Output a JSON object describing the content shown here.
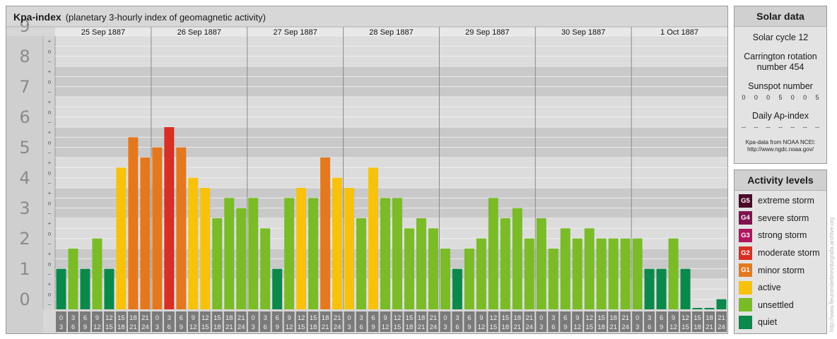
{
  "title": "Kpa-index",
  "subtitle": "(planetary 3-hourly index of geomagnetic activity)",
  "chart_data": {
    "type": "bar",
    "title": "Kpa-index",
    "subtitle": "(planetary 3-hourly index of geomagnetic activity)",
    "ylim": [
      0,
      9
    ],
    "y_ticks": [
      "0",
      "1",
      "2",
      "3",
      "4",
      "5",
      "6",
      "7",
      "8",
      "9"
    ],
    "sub_ticks": [
      "−",
      "o",
      "+"
    ],
    "days": [
      "25 Sep 1887",
      "26 Sep 1887",
      "27 Sep 1887",
      "28 Sep 1887",
      "29 Sep 1887",
      "30 Sep 1887",
      "1 Oct 1887"
    ],
    "interval_start": [
      "0",
      "3",
      "6",
      "9",
      "12",
      "15",
      "18",
      "21"
    ],
    "interval_end": [
      "3",
      "6",
      "9",
      "12",
      "15",
      "18",
      "21",
      "24"
    ],
    "values": [
      1.333,
      2.0,
      1.333,
      2.333,
      1.333,
      4.667,
      5.667,
      5.0,
      5.333,
      6.0,
      5.333,
      4.333,
      4.0,
      3.0,
      3.667,
      3.333,
      3.667,
      2.667,
      1.333,
      3.667,
      4.0,
      3.667,
      5.0,
      4.333,
      4.0,
      3.0,
      4.667,
      3.667,
      3.667,
      2.667,
      3.0,
      2.667,
      2.0,
      1.333,
      2.0,
      2.333,
      3.667,
      3.0,
      3.333,
      2.333,
      3.0,
      2.0,
      2.667,
      2.333,
      2.667,
      2.333,
      2.333,
      2.333,
      2.333,
      1.333,
      1.333,
      2.333,
      1.333,
      0.0,
      0.0,
      0.333
    ]
  },
  "solar": {
    "heading": "Solar data",
    "cycle": "Solar cycle 12",
    "carrington_1": "Carrington rotation",
    "carrington_2": "number 454",
    "sunspot_label": "Sunspot number",
    "sunspot_digits": [
      "0",
      "0",
      "0",
      "5",
      "0",
      "0",
      "5"
    ],
    "ap_label": "Daily Ap-index",
    "ap_values": [
      "--",
      "--",
      "--",
      "--",
      "--",
      "--",
      "--"
    ],
    "source_1": "Kpa-data from NOAA NCEI:",
    "source_2": "http://www.ngdc.noaa.gov/"
  },
  "activity": {
    "heading": "Activity levels",
    "levels": [
      {
        "code": "G5",
        "label": "extreme storm",
        "color": "#4c0a2a"
      },
      {
        "code": "G4",
        "label": "severe storm",
        "color": "#80124f"
      },
      {
        "code": "G3",
        "label": "strong storm",
        "color": "#b0155e"
      },
      {
        "code": "G2",
        "label": "moderate storm",
        "color": "#d92e23"
      },
      {
        "code": "G1",
        "label": "minor storm",
        "color": "#e5781d"
      },
      {
        "code": "",
        "label": "active",
        "color": "#f8c20a"
      },
      {
        "code": "",
        "label": "unsettled",
        "color": "#79bc25"
      },
      {
        "code": "",
        "label": "quiet",
        "color": "#09894a"
      }
    ]
  },
  "watermark": "http://www.fleuronderbrevdurgrafa.archive.org"
}
